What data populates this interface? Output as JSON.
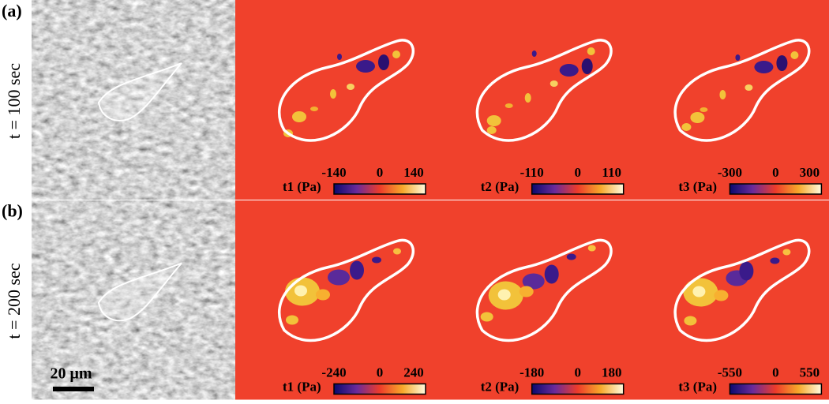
{
  "panels": [
    {
      "label": "(a)",
      "time": "t = 100 sec",
      "maps": [
        {
          "label": "t1 (Pa)",
          "min": -140,
          "mid": 0,
          "max": 140
        },
        {
          "label": "t2 (Pa)",
          "min": -110,
          "mid": 0,
          "max": 110
        },
        {
          "label": "t3 (Pa)",
          "min": -300,
          "mid": 0,
          "max": 300
        }
      ]
    },
    {
      "label": "(b)",
      "time": "t = 200 sec",
      "maps": [
        {
          "label": "t1 (Pa)",
          "min": -240,
          "mid": 0,
          "max": 240
        },
        {
          "label": "t2 (Pa)",
          "min": -180,
          "mid": 0,
          "max": 180
        },
        {
          "label": "t3 (Pa)",
          "min": -550,
          "mid": 0,
          "max": 550
        }
      ]
    }
  ],
  "scale_bar": "20 μm"
}
